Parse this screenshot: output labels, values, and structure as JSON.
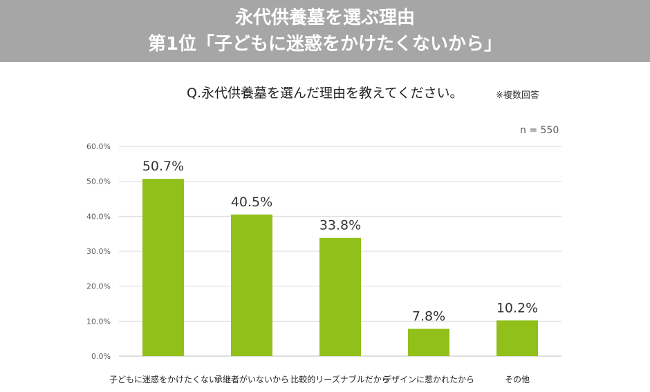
{
  "header": {
    "title_line1": "永代供養墓を選ぶ理由",
    "title_line2": "第1位「子どもに迷惑をかけたくないから」"
  },
  "question": "Q.永代供養墓を選んだ理由を教えてください。",
  "note": "※複数回答",
  "sample_size": "n = 550",
  "colors": {
    "bar": "#92c01a",
    "grid": "#d9d9d9",
    "banner": "#a6a6a6"
  },
  "chart_data": {
    "type": "bar",
    "title": "",
    "xlabel": "",
    "ylabel": "",
    "categories": [
      "子どもに迷惑をかけたくない",
      "承継者がいないから",
      "比較的リーズナブルだから",
      "デザインに惹かれたから",
      "その他"
    ],
    "values": [
      50.7,
      40.5,
      33.8,
      7.8,
      10.2
    ],
    "data_labels": [
      "50.7%",
      "40.5%",
      "33.8%",
      "7.8%",
      "10.2%"
    ],
    "yticks": [
      "0.0%",
      "10.0%",
      "20.0%",
      "30.0%",
      "40.0%",
      "50.0%",
      "60.0%"
    ],
    "ylim": [
      0,
      60
    ],
    "grid": true,
    "legend": false
  }
}
